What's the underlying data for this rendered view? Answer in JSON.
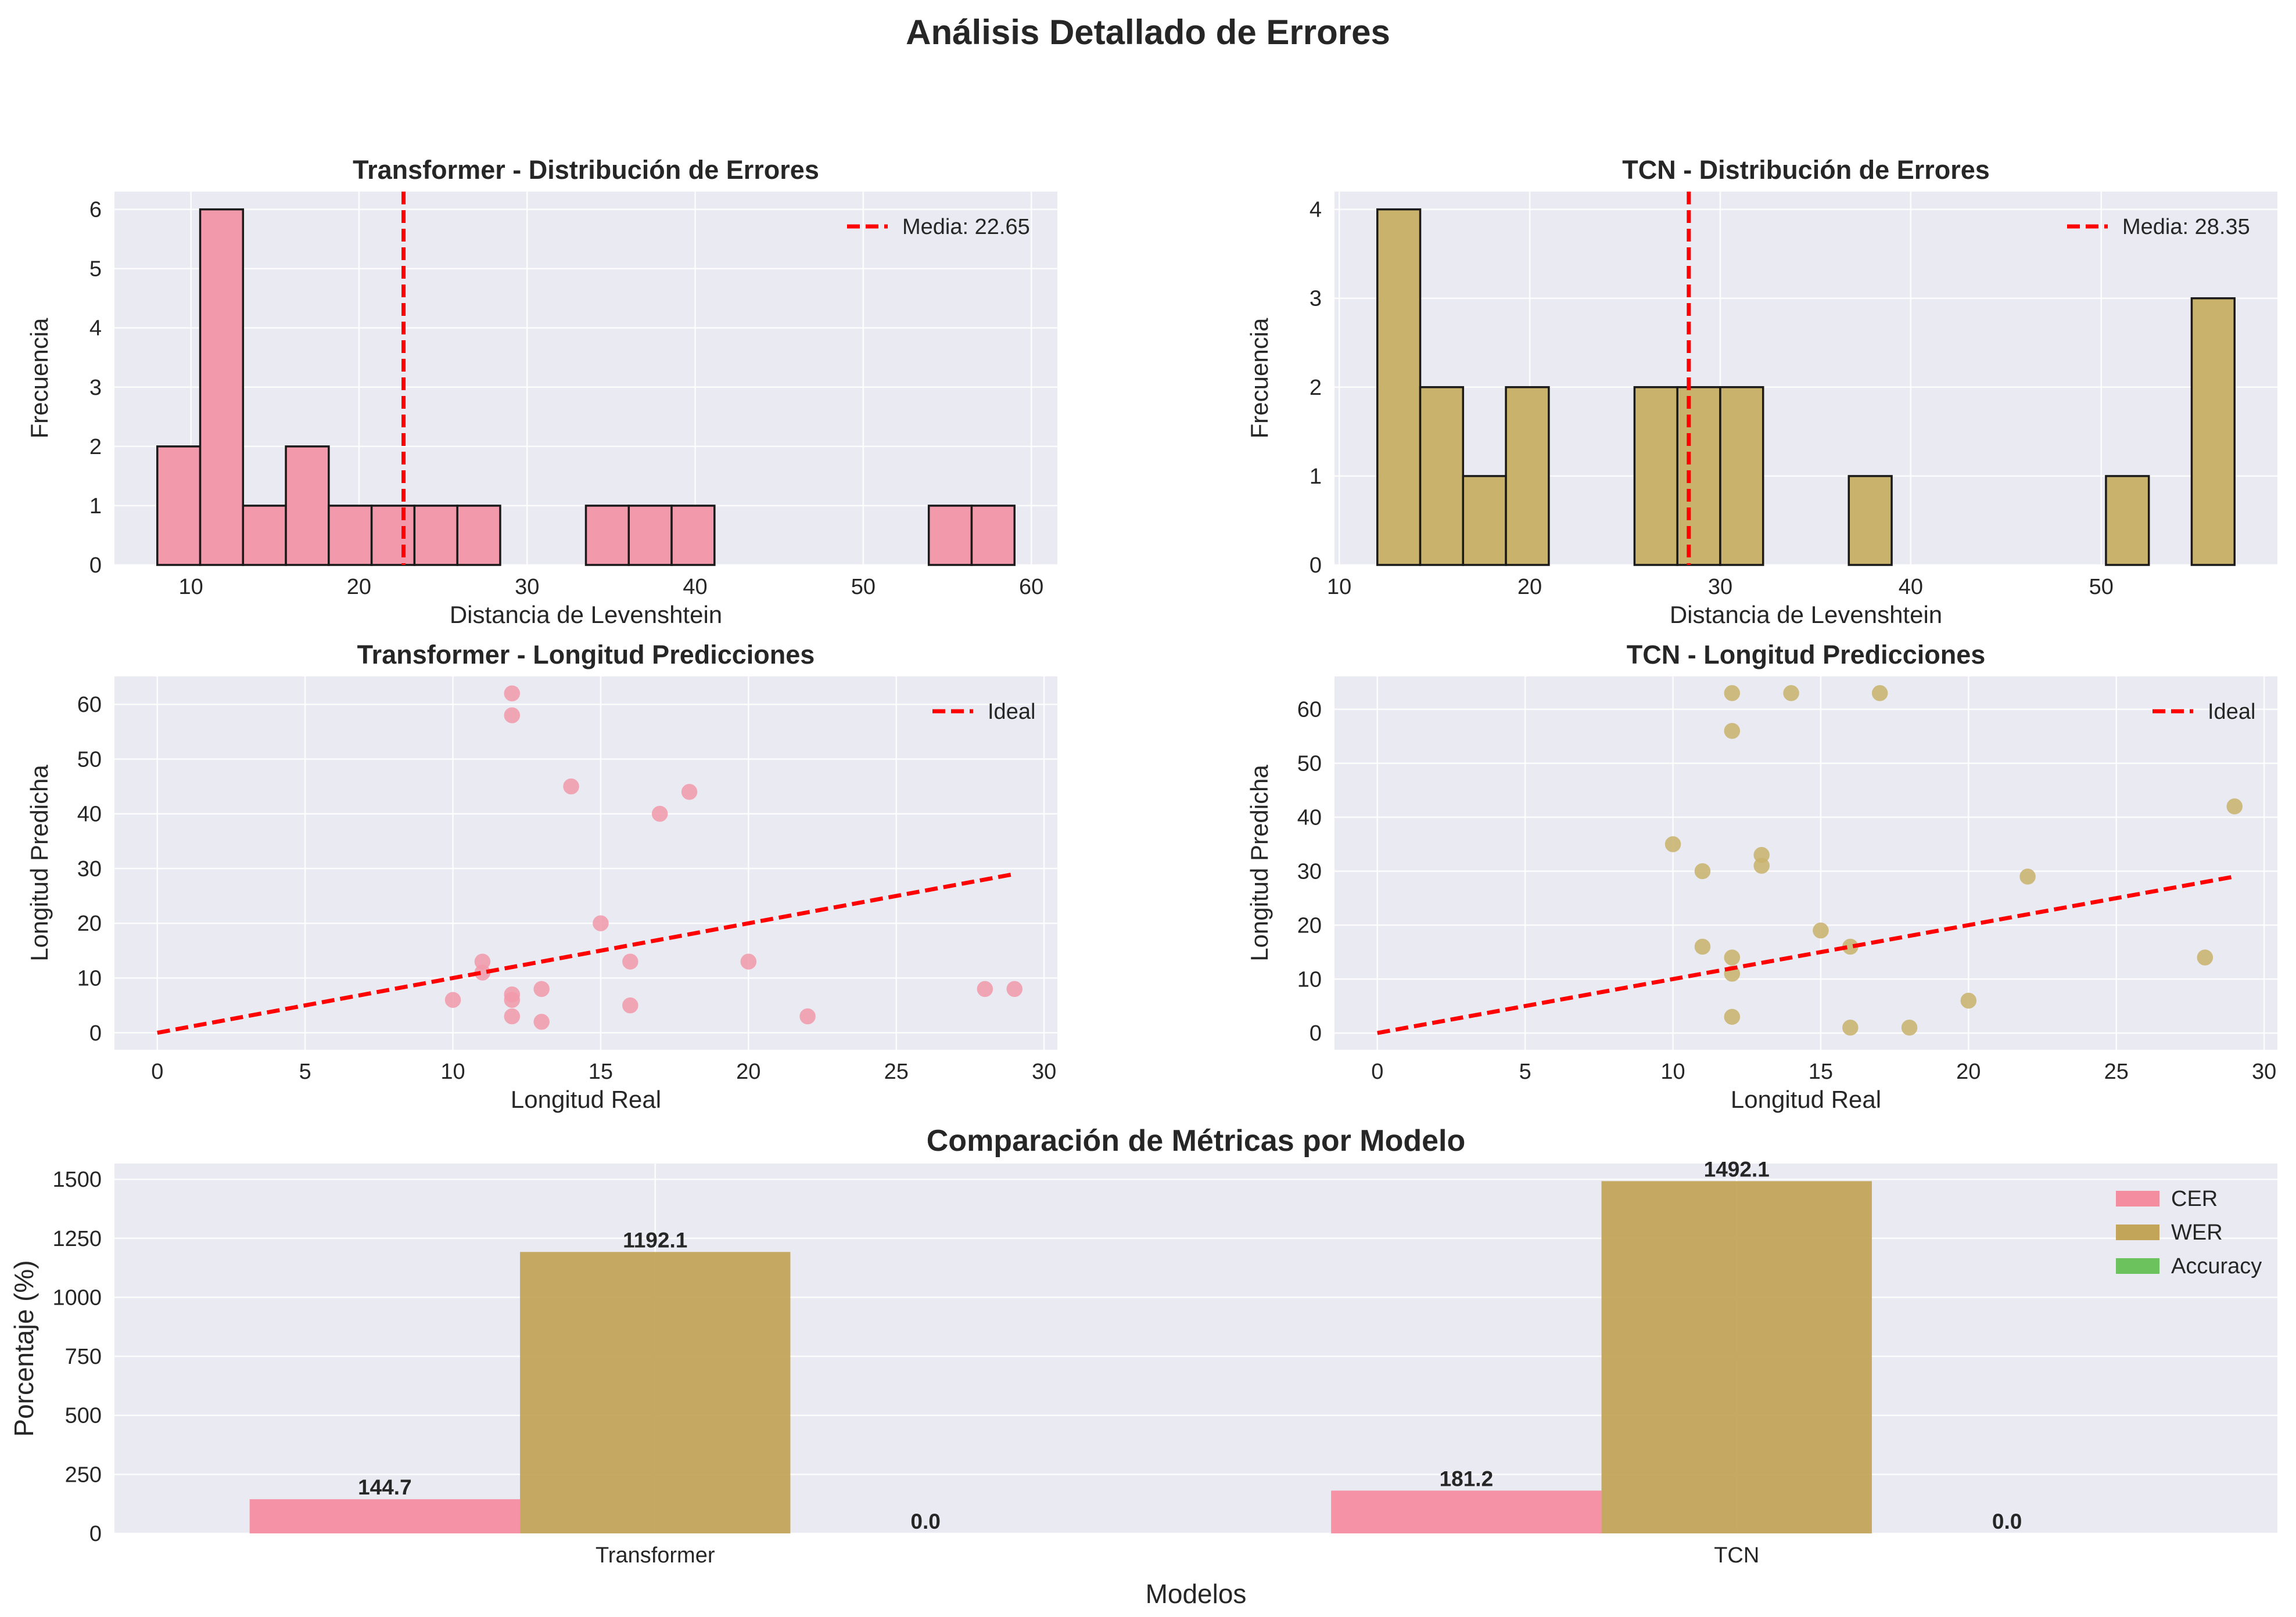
{
  "figure_title": "Análisis Detallado de Errores",
  "chart_data": [
    {
      "type": "bar",
      "title": "Transformer - Distribución de Errores",
      "xlabel": "Distancia de Levenshtein",
      "ylabel": "Frecuencia",
      "xlim": [
        5.45,
        61.55
      ],
      "ylim": [
        0,
        6.3
      ],
      "xticks": [
        10,
        20,
        30,
        40,
        50,
        60
      ],
      "yticks": [
        0,
        1,
        2,
        3,
        4,
        5,
        6
      ],
      "bins": [
        8.0,
        10.55,
        13.1,
        15.65,
        18.2,
        20.75,
        23.3,
        25.85,
        28.4,
        30.95,
        33.5,
        36.05,
        38.6,
        41.15,
        43.7,
        46.25,
        48.8,
        51.35,
        53.9,
        56.45,
        59.0
      ],
      "counts": [
        2,
        6,
        1,
        2,
        1,
        1,
        1,
        1,
        0,
        0,
        1,
        1,
        1,
        0,
        0,
        0,
        0,
        0,
        1,
        1
      ],
      "color": "#f29aab",
      "mean_line": {
        "value": 22.65,
        "label": "Media: 22.65",
        "color": "#ff0000"
      },
      "legend_position": "upper right",
      "grid": true
    },
    {
      "type": "bar",
      "title": "TCN - Distribución de Errores",
      "xlabel": "Distancia de Levenshtein",
      "ylabel": "Frecuencia",
      "xlim": [
        9.75,
        59.25
      ],
      "ylim": [
        0,
        4.2
      ],
      "xticks": [
        10,
        20,
        30,
        40,
        50
      ],
      "yticks": [
        0,
        1,
        2,
        3,
        4
      ],
      "bins": [
        12.0,
        14.25,
        16.5,
        18.75,
        21.0,
        23.25,
        25.5,
        27.75,
        30.0,
        32.25,
        34.5,
        36.75,
        39.0,
        41.25,
        43.5,
        45.75,
        48.0,
        50.25,
        52.5,
        54.75,
        57.0
      ],
      "counts": [
        4,
        2,
        1,
        2,
        0,
        0,
        2,
        2,
        2,
        0,
        0,
        1,
        0,
        0,
        0,
        0,
        0,
        1,
        0,
        3
      ],
      "color": "#c9b26c",
      "mean_line": {
        "value": 28.35,
        "label": "Media: 28.35",
        "color": "#ff0000"
      },
      "legend_position": "upper right",
      "grid": true
    },
    {
      "type": "scatter",
      "title": "Transformer - Longitud Predicciones",
      "xlabel": "Longitud Real",
      "ylabel": "Longitud Predicha",
      "xlim": [
        -1.45,
        30.45
      ],
      "ylim": [
        -3.1,
        65.1
      ],
      "xticks": [
        0,
        5,
        10,
        15,
        20,
        25,
        30
      ],
      "yticks": [
        0,
        10,
        20,
        30,
        40,
        50,
        60
      ],
      "points": [
        {
          "x": 12,
          "y": 62
        },
        {
          "x": 12,
          "y": 58
        },
        {
          "x": 14,
          "y": 45
        },
        {
          "x": 18,
          "y": 44
        },
        {
          "x": 17,
          "y": 40
        },
        {
          "x": 15,
          "y": 20
        },
        {
          "x": 11,
          "y": 13
        },
        {
          "x": 11,
          "y": 11
        },
        {
          "x": 16,
          "y": 13
        },
        {
          "x": 20,
          "y": 13
        },
        {
          "x": 10,
          "y": 6
        },
        {
          "x": 12,
          "y": 7
        },
        {
          "x": 12,
          "y": 6
        },
        {
          "x": 13,
          "y": 8
        },
        {
          "x": 12,
          "y": 3
        },
        {
          "x": 13,
          "y": 2
        },
        {
          "x": 16,
          "y": 5
        },
        {
          "x": 22,
          "y": 3
        },
        {
          "x": 28,
          "y": 8
        },
        {
          "x": 29,
          "y": 8
        }
      ],
      "color": "#f29aab",
      "ideal_line": {
        "x": [
          0,
          29
        ],
        "y": [
          0,
          29
        ],
        "label": "Ideal",
        "color": "#ff0000"
      },
      "legend_position": "upper right",
      "grid": true
    },
    {
      "type": "scatter",
      "title": "TCN - Longitud Predicciones",
      "xlabel": "Longitud Real",
      "ylabel": "Longitud Predicha",
      "xlim": [
        -1.45,
        30.45
      ],
      "ylim": [
        -3.1,
        66.1
      ],
      "xticks": [
        0,
        5,
        10,
        15,
        20,
        25,
        30
      ],
      "yticks": [
        0,
        10,
        20,
        30,
        40,
        50,
        60
      ],
      "points": [
        {
          "x": 12,
          "y": 63
        },
        {
          "x": 14,
          "y": 63
        },
        {
          "x": 17,
          "y": 63
        },
        {
          "x": 12,
          "y": 56
        },
        {
          "x": 29,
          "y": 42
        },
        {
          "x": 10,
          "y": 35
        },
        {
          "x": 13,
          "y": 33
        },
        {
          "x": 13,
          "y": 31
        },
        {
          "x": 11,
          "y": 30
        },
        {
          "x": 22,
          "y": 29
        },
        {
          "x": 15,
          "y": 19
        },
        {
          "x": 11,
          "y": 16
        },
        {
          "x": 16,
          "y": 16
        },
        {
          "x": 12,
          "y": 14
        },
        {
          "x": 28,
          "y": 14
        },
        {
          "x": 12,
          "y": 11
        },
        {
          "x": 20,
          "y": 6
        },
        {
          "x": 12,
          "y": 3
        },
        {
          "x": 16,
          "y": 1
        },
        {
          "x": 18,
          "y": 1
        }
      ],
      "color": "#c9b26c",
      "ideal_line": {
        "x": [
          0,
          29
        ],
        "y": [
          0,
          29
        ],
        "label": "Ideal",
        "color": "#ff0000"
      },
      "legend_position": "upper right",
      "grid": true
    },
    {
      "type": "bar",
      "title": "Comparación de Métricas por Modelo",
      "xlabel": "Modelos",
      "ylabel": "Porcentaje (%)",
      "categories": [
        "Transformer",
        "TCN"
      ],
      "series": [
        {
          "name": "CER",
          "values": [
            144.7,
            181.2
          ],
          "labels": [
            "144.7",
            "181.2"
          ],
          "color": "#f58da0"
        },
        {
          "name": "WER",
          "values": [
            1192.1,
            1492.1
          ],
          "labels": [
            "1192.1",
            "1492.1"
          ],
          "color": "#c3a55a"
        },
        {
          "name": "Accuracy",
          "values": [
            0.0,
            0.0
          ],
          "labels": [
            "0.0",
            "0.0"
          ],
          "color": "#6cc35d"
        }
      ],
      "ylim": [
        0,
        1566.7
      ],
      "yticks": [
        0,
        250,
        500,
        750,
        1000,
        1250,
        1500
      ],
      "legend_position": "upper right",
      "grid": true
    }
  ]
}
